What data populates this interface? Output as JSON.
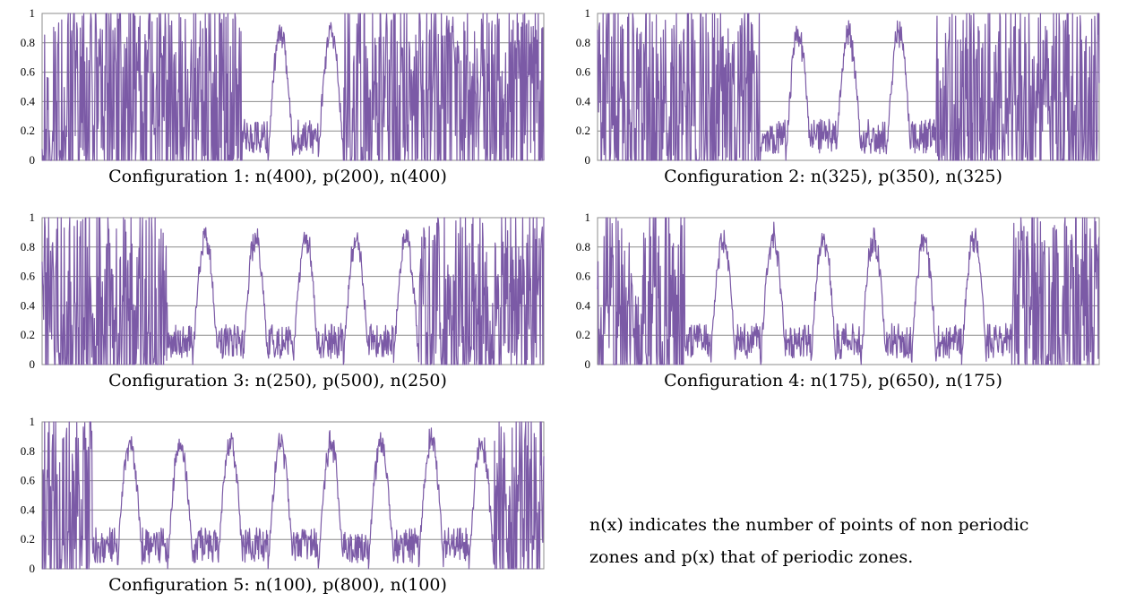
{
  "chart_data": [
    {
      "type": "line",
      "caption": "Configuration 1: n(400), p(200), n(400)",
      "segments": [
        {
          "zone": "n",
          "points": 400
        },
        {
          "zone": "p",
          "points": 200
        },
        {
          "zone": "n",
          "points": 400
        }
      ],
      "ylim": [
        0,
        1
      ],
      "yticks": [
        "0",
        "0.2",
        "0.4",
        "0.6",
        "0.8",
        "1"
      ],
      "grid": true,
      "color": "#7b5aa6",
      "series": [
        {
          "values": []
        }
      ]
    },
    {
      "type": "line",
      "caption": "Configuration 2: n(325), p(350), n(325)",
      "segments": [
        {
          "zone": "n",
          "points": 325
        },
        {
          "zone": "p",
          "points": 350
        },
        {
          "zone": "n",
          "points": 325
        }
      ],
      "ylim": [
        0,
        1
      ],
      "yticks": [
        "0",
        "0.2",
        "0.4",
        "0.6",
        "0.8",
        "1"
      ],
      "grid": true,
      "color": "#7b5aa6",
      "series": [
        {
          "values": []
        }
      ]
    },
    {
      "type": "line",
      "caption": "Configuration 3: n(250), p(500), n(250)",
      "segments": [
        {
          "zone": "n",
          "points": 250
        },
        {
          "zone": "p",
          "points": 500
        },
        {
          "zone": "n",
          "points": 250
        }
      ],
      "ylim": [
        0,
        1
      ],
      "yticks": [
        "0",
        "0.2",
        "0.4",
        "0.6",
        "0.8",
        "1"
      ],
      "grid": true,
      "color": "#7b5aa6",
      "series": [
        {
          "values": []
        }
      ]
    },
    {
      "type": "line",
      "caption": "Configuration 4: n(175), p(650), n(175)",
      "segments": [
        {
          "zone": "n",
          "points": 175
        },
        {
          "zone": "p",
          "points": 650
        },
        {
          "zone": "n",
          "points": 175
        }
      ],
      "ylim": [
        0,
        1
      ],
      "yticks": [
        "0",
        "0.2",
        "0.4",
        "0.6",
        "0.8",
        "1"
      ],
      "grid": true,
      "color": "#7b5aa6",
      "series": [
        {
          "values": []
        }
      ]
    },
    {
      "type": "line",
      "caption": "Configuration 5: n(100), p(800), n(100)",
      "segments": [
        {
          "zone": "n",
          "points": 100
        },
        {
          "zone": "p",
          "points": 800
        },
        {
          "zone": "n",
          "points": 100
        }
      ],
      "ylim": [
        0,
        1
      ],
      "yticks": [
        "0",
        "0.2",
        "0.4",
        "0.6",
        "0.8",
        "1"
      ],
      "grid": true,
      "color": "#7b5aa6",
      "series": [
        {
          "values": []
        }
      ]
    }
  ],
  "note": {
    "line1": "n(x) indicates the number of points of non periodic",
    "line2": "zones and p(x) that of periodic zones."
  }
}
